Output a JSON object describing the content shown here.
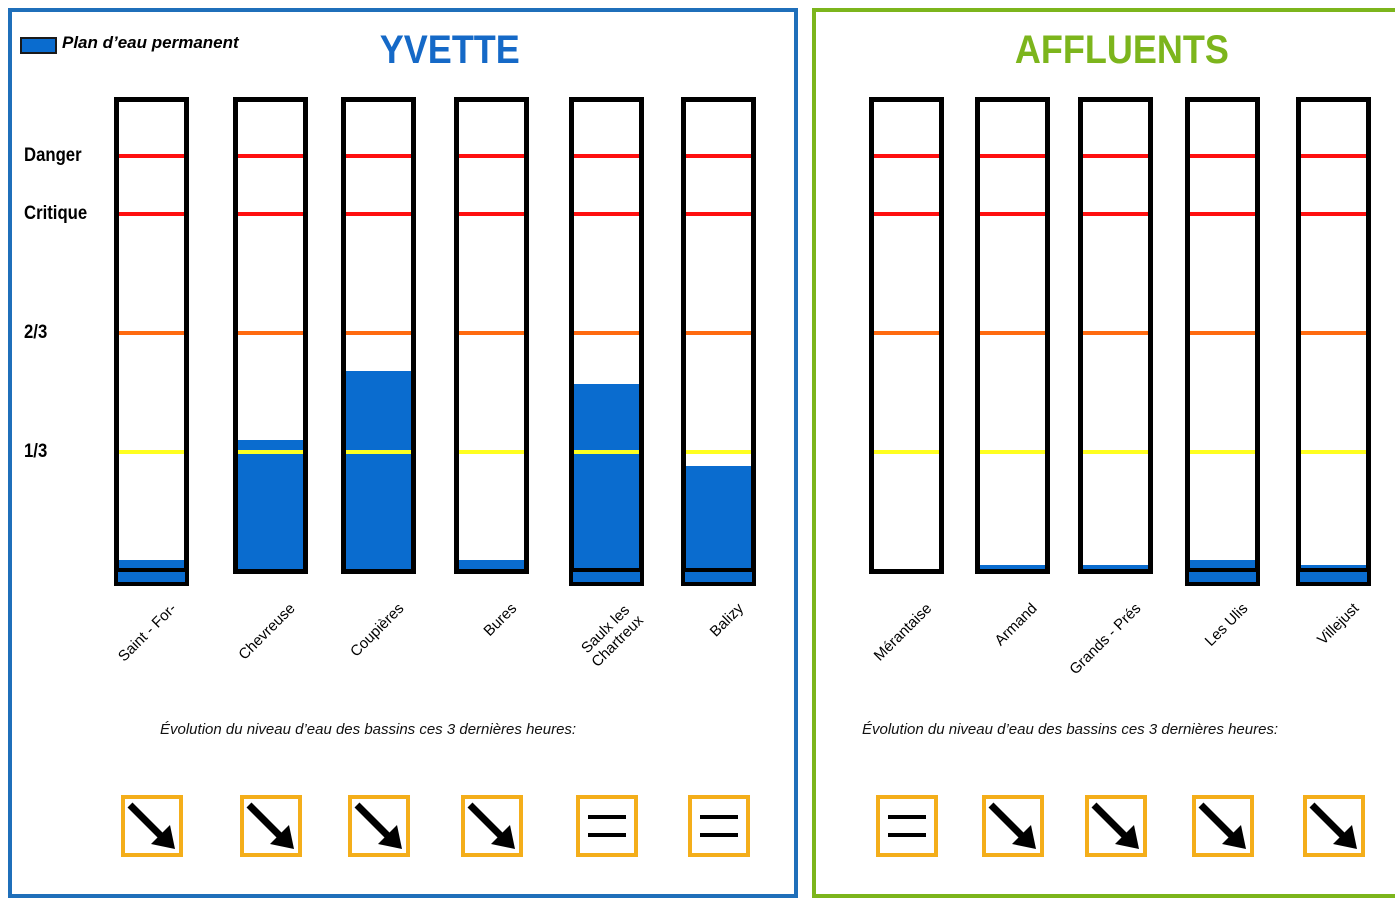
{
  "legend": {
    "label": "Plan d’eau permanent",
    "color": "#0a6ccf"
  },
  "thresholds": [
    {
      "label": "Danger",
      "color": "#ff1010"
    },
    {
      "label": "Critique",
      "color": "#ff1010"
    },
    {
      "label": "2/3",
      "color": "#ff6a10"
    },
    {
      "label": "1/3",
      "color": "#ffff20"
    }
  ],
  "groups": [
    {
      "title": "YVETTE",
      "title_color": "#1569c7",
      "caption": "Évolution du niveau d’eau des bassins ces 3 dernières heures:",
      "basins": [
        {
          "name": "Saint - For-",
          "fill_fraction": 0.02,
          "permanent_pool": true,
          "trend": "down"
        },
        {
          "name": "Chevreuse",
          "fill_fraction": 0.3,
          "permanent_pool": false,
          "trend": "down"
        },
        {
          "name": "Coupières",
          "fill_fraction": 0.46,
          "permanent_pool": false,
          "trend": "down"
        },
        {
          "name": "Bures",
          "fill_fraction": 0.02,
          "permanent_pool": false,
          "trend": "down"
        },
        {
          "name": "Saulx les\nChartreux",
          "fill_fraction": 0.43,
          "permanent_pool": true,
          "trend": "stable"
        },
        {
          "name": "Balizy",
          "fill_fraction": 0.24,
          "permanent_pool": true,
          "trend": "stable"
        }
      ]
    },
    {
      "title": "AFFLUENTS",
      "title_color": "#7cb51c",
      "caption": "Évolution du niveau d’eau des bassins ces 3 dernières heures:",
      "basins": [
        {
          "name": "Mérantaise",
          "fill_fraction": 0.0,
          "permanent_pool": false,
          "trend": "stable"
        },
        {
          "name": "Armand",
          "fill_fraction": 0.01,
          "permanent_pool": false,
          "trend": "down"
        },
        {
          "name": "Grands - Prés",
          "fill_fraction": 0.01,
          "permanent_pool": false,
          "trend": "down"
        },
        {
          "name": "Les Ulis",
          "fill_fraction": 0.02,
          "permanent_pool": true,
          "trend": "down"
        },
        {
          "name": "Villejust",
          "fill_fraction": 0.01,
          "permanent_pool": true,
          "trend": "down"
        }
      ]
    }
  ]
}
